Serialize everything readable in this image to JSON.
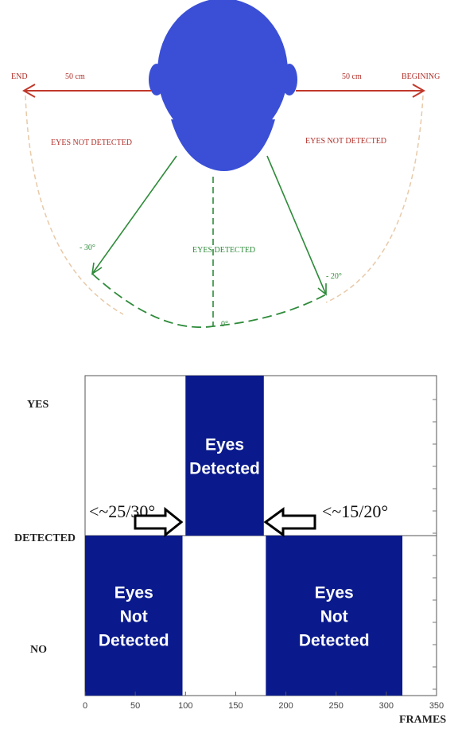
{
  "diagram": {
    "left_end_label": "END",
    "right_end_label": "BEGINING",
    "left_distance": "50 cm",
    "right_distance": "50 cm",
    "left_zone": "EYES NOT DETECTED",
    "right_zone": "EYES NOT DETECTED",
    "center_zone": "EYES DETECTED",
    "left_angle": "- 30°",
    "right_angle": "- 20°",
    "center_angle": "0°",
    "colors": {
      "head": "#3a4fd6",
      "red_arrow": "#c0392b",
      "green": "#2e8b3a",
      "red_text": "#b0302a"
    }
  },
  "chart_data": {
    "type": "bar",
    "x": [
      0,
      100,
      180,
      316
    ],
    "segments": [
      {
        "x_start": 0,
        "x_end": 97,
        "level": "NO",
        "label_lines": [
          "Eyes",
          "Not",
          "Detected"
        ]
      },
      {
        "x_start": 100,
        "x_end": 178,
        "level": "YES",
        "label_lines": [
          "Eyes",
          "Detected"
        ]
      },
      {
        "x_start": 180,
        "x_end": 316,
        "level": "NO",
        "label_lines": [
          "Eyes",
          "Not",
          "Detected"
        ]
      }
    ],
    "y_categories": [
      "NO",
      "DETECTED",
      "YES"
    ],
    "xlabel": "FRAMES",
    "xlim": [
      0,
      350
    ],
    "xticks": [
      0,
      50,
      100,
      150,
      200,
      250,
      300,
      350
    ],
    "annotations": [
      {
        "text": "<~25/30°",
        "points_at_x": 100
      },
      {
        "text": "<~15/20°",
        "points_at_x": 180
      }
    ],
    "bar_color": "#0a1a8c"
  }
}
